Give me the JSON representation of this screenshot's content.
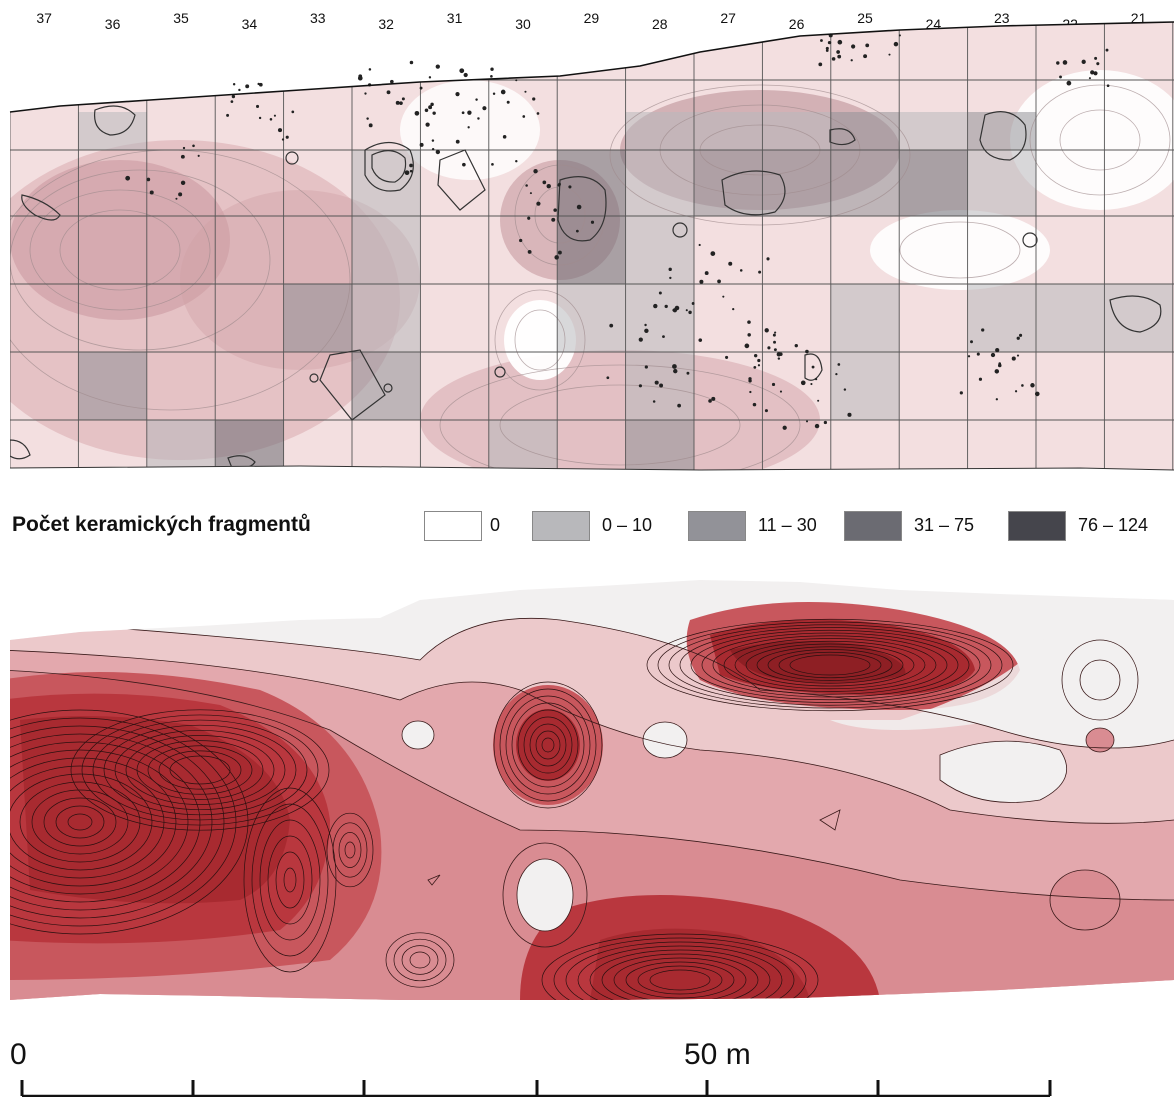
{
  "column_labels": [
    "37",
    "36",
    "35",
    "34",
    "33",
    "32",
    "31",
    "30",
    "29",
    "28",
    "27",
    "26",
    "25",
    "24",
    "23",
    "22",
    "21"
  ],
  "legend": {
    "title": "Počet keramických fragmentů",
    "classes": [
      {
        "label": "0",
        "color": "#ffffff"
      },
      {
        "label": "0 – 10",
        "color": "#b8b8bb"
      },
      {
        "label": "11 – 30",
        "color": "#929298"
      },
      {
        "label": "31 – 75",
        "color": "#6b6b72"
      },
      {
        "label": "76 – 124",
        "color": "#45454c"
      }
    ]
  },
  "grid_counts": [
    [
      0,
      1,
      0,
      0,
      0,
      0,
      0,
      0,
      0,
      1,
      1,
      1,
      2,
      1,
      2,
      0,
      0
    ],
    [
      0,
      0,
      0,
      0,
      0,
      1,
      0,
      0,
      3,
      1,
      2,
      2,
      2,
      3,
      1,
      0,
      0
    ],
    [
      0,
      0,
      0,
      0,
      0,
      1,
      0,
      0,
      3,
      1,
      0,
      0,
      0,
      0,
      0,
      0,
      0
    ],
    [
      0,
      0,
      0,
      0,
      2,
      1,
      0,
      0,
      1,
      1,
      0,
      0,
      1,
      0,
      1,
      1,
      1
    ],
    [
      0,
      2,
      0,
      0,
      0,
      2,
      0,
      0,
      0,
      1,
      0,
      0,
      1,
      0,
      0,
      0,
      0
    ],
    [
      0,
      0,
      1,
      3,
      0,
      0,
      0,
      1,
      0,
      2,
      0,
      0,
      0,
      0,
      0,
      0,
      0
    ]
  ],
  "scale_bar": {
    "label_start": "0",
    "label_mid": "50 m"
  },
  "colors": {
    "density_dark": "#9e1c1c",
    "density_light": "#f2dede"
  }
}
